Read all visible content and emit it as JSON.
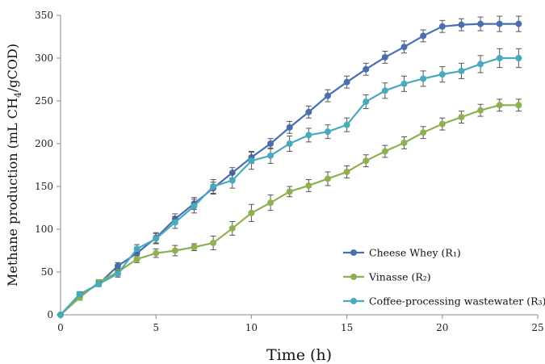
{
  "chart_data": {
    "type": "line",
    "title": "",
    "xlabel": "Time (h)",
    "ylabel_prefix": "Methane production  (mL CH",
    "ylabel_sub": "4",
    "ylabel_suffix": "/gCOD)",
    "xlim": [
      0,
      25
    ],
    "ylim": [
      0,
      350
    ],
    "xticks": [
      0,
      5,
      10,
      15,
      20,
      25
    ],
    "yticks": [
      0,
      50,
      100,
      150,
      200,
      250,
      300,
      350
    ],
    "grid": false,
    "legend_position": "bottom-right",
    "series": [
      {
        "name": "Cheese Whey (R₁)",
        "color": "#4a6fb0",
        "x": [
          0,
          1,
          2,
          3,
          4,
          5,
          6,
          7,
          8,
          9,
          10,
          11,
          12,
          13,
          14,
          15,
          16,
          17,
          18,
          19,
          20,
          21,
          22,
          23,
          24
        ],
        "y": [
          0,
          23,
          36,
          57,
          72,
          90,
          112,
          130,
          148,
          166,
          184,
          200,
          219,
          237,
          256,
          272,
          287,
          301,
          313,
          326,
          337,
          339,
          340,
          340,
          340
        ],
        "error": [
          0,
          3,
          3,
          4,
          5,
          6,
          6,
          7,
          7,
          6,
          7,
          6,
          7,
          7,
          7,
          7,
          7,
          7,
          7,
          7,
          7,
          7,
          8,
          9,
          9
        ]
      },
      {
        "name": "Vinasse (R₂)",
        "color": "#8fb050",
        "x": [
          0,
          1,
          2,
          3,
          4,
          5,
          6,
          7,
          8,
          9,
          10,
          11,
          12,
          13,
          14,
          15,
          16,
          17,
          18,
          19,
          20,
          21,
          22,
          23,
          24
        ],
        "y": [
          0,
          20,
          38,
          50,
          65,
          72,
          75,
          79,
          84,
          101,
          119,
          131,
          144,
          151,
          159,
          167,
          180,
          191,
          201,
          213,
          223,
          231,
          239,
          245,
          245
        ],
        "error": [
          0,
          3,
          3,
          4,
          4,
          5,
          6,
          4,
          8,
          8,
          10,
          9,
          6,
          7,
          8,
          7,
          7,
          7,
          7,
          7,
          7,
          7,
          7,
          7,
          7
        ]
      },
      {
        "name": "Coffee-processing wastewater (R₃)",
        "color": "#4aaabd",
        "x": [
          0,
          1,
          2,
          3,
          4,
          5,
          6,
          7,
          8,
          9,
          10,
          11,
          12,
          13,
          14,
          15,
          16,
          17,
          18,
          19,
          20,
          21,
          22,
          23,
          24
        ],
        "y": [
          0,
          24,
          36,
          48,
          77,
          89,
          108,
          127,
          150,
          157,
          180,
          186,
          200,
          210,
          214,
          222,
          249,
          262,
          270,
          276,
          281,
          285,
          293,
          300,
          300
        ],
        "error": [
          0,
          3,
          3,
          4,
          5,
          6,
          7,
          8,
          8,
          9,
          10,
          9,
          9,
          8,
          8,
          8,
          8,
          9,
          9,
          9,
          9,
          9,
          10,
          11,
          11
        ]
      }
    ]
  }
}
